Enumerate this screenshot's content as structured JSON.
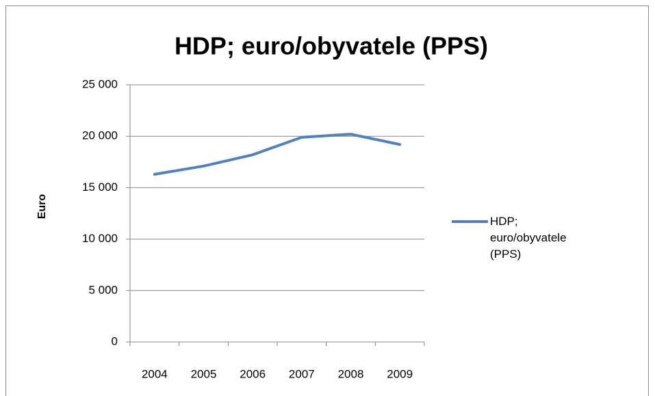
{
  "chart_data": {
    "type": "line",
    "title": "HDP; euro/obyvatele (PPS)",
    "y_label": "Euro",
    "categories": [
      "2004",
      "2005",
      "2006",
      "2007",
      "2008",
      "2009"
    ],
    "series": [
      {
        "name": "HDP; euro/obyvatele (PPS)",
        "color": "#4f81bd",
        "values": [
          16300,
          17100,
          18200,
          19900,
          20200,
          19200
        ]
      }
    ],
    "ylim": [
      0,
      25000
    ],
    "yticks": [
      0,
      {
        "value": 5000,
        "label": "5 000"
      },
      {
        "value": 10000,
        "label": "10 000"
      },
      {
        "value": 15000,
        "label": "15 000"
      },
      {
        "value": 20000,
        "label": "20 000"
      },
      {
        "value": 25000,
        "label": "25 000"
      }
    ],
    "grid": true,
    "legend": "right"
  }
}
